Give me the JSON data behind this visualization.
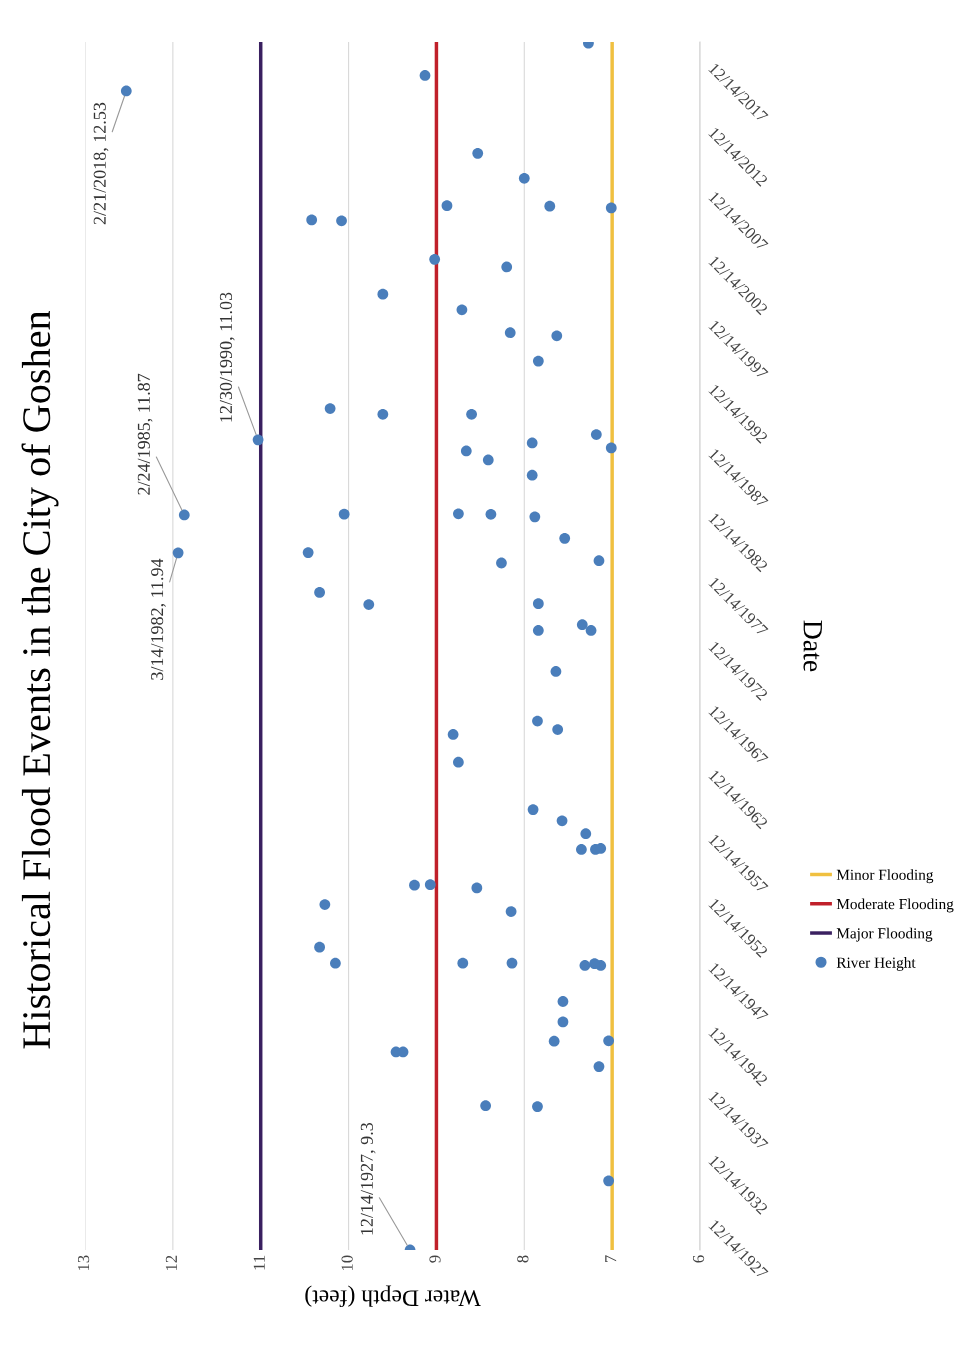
{
  "chart_data": {
    "type": "scatter",
    "orientation": "horizontal",
    "title": "Historical Flood Events in the City of Goshen",
    "xlabel": "Water Depth (feet)",
    "ylabel": "Date",
    "xlim": [
      13,
      6
    ],
    "xticks": [
      13,
      12,
      11,
      10,
      9,
      8,
      7,
      6
    ],
    "ylim": [
      "1927-12-14",
      "2021-12-14"
    ],
    "yticks": [
      {
        "value": "1927-12-14",
        "label": "12/14/1927"
      },
      {
        "value": "1932-12-14",
        "label": "12/14/1932"
      },
      {
        "value": "1937-12-14",
        "label": "12/14/1937"
      },
      {
        "value": "1942-12-14",
        "label": "12/14/1942"
      },
      {
        "value": "1947-12-14",
        "label": "12/14/1947"
      },
      {
        "value": "1952-12-14",
        "label": "12/14/1952"
      },
      {
        "value": "1957-12-14",
        "label": "12/14/1957"
      },
      {
        "value": "1962-12-14",
        "label": "12/14/1962"
      },
      {
        "value": "1967-12-14",
        "label": "12/14/1967"
      },
      {
        "value": "1972-12-14",
        "label": "12/14/1972"
      },
      {
        "value": "1977-12-14",
        "label": "12/14/1977"
      },
      {
        "value": "1982-12-14",
        "label": "12/14/1982"
      },
      {
        "value": "1987-12-14",
        "label": "12/14/1987"
      },
      {
        "value": "1992-12-14",
        "label": "12/14/1992"
      },
      {
        "value": "1997-12-14",
        "label": "12/14/1997"
      },
      {
        "value": "2002-12-14",
        "label": "12/14/2002"
      },
      {
        "value": "2007-12-14",
        "label": "12/14/2007"
      },
      {
        "value": "2012-12-14",
        "label": "12/14/2012"
      },
      {
        "value": "2017-12-14",
        "label": "12/14/2017"
      }
    ],
    "grid": "x",
    "legend": "right",
    "series": [
      {
        "name": "Minor Flooding",
        "type": "line",
        "marker": "none",
        "color": "#f0c040",
        "x": [
          "1927-12-14",
          "2021-11-10"
        ],
        "values": [
          7,
          7
        ]
      },
      {
        "name": "Moderate Flooding",
        "type": "line",
        "marker": "none",
        "color": "#c0202a",
        "x": [
          "1927-12-14",
          "2021-11-10"
        ],
        "values": [
          9,
          9
        ]
      },
      {
        "name": "Major Flooding",
        "type": "line",
        "marker": "none",
        "color": "#3a2060",
        "x": [
          "1927-12-14",
          "2021-11-10"
        ],
        "values": [
          11,
          11
        ]
      },
      {
        "name": "River Height",
        "type": "scatter",
        "marker": "circle",
        "color": "#4a7ebb",
        "x": [
          "1927-12-14",
          "1933-05-01",
          "1939-02-10",
          "1939-03-07",
          "1942-03-22",
          "1943-05-12",
          "1943-05-13",
          "1944-03-14",
          "1944-03-25",
          "1945-09-13",
          "1947-04-16",
          "1950-02-03",
          "1950-02-04",
          "1950-03-26",
          "1950-04-09",
          "1950-04-10",
          "1950-04-11",
          "1951-07-09",
          "1954-04-16",
          "1954-10-31",
          "1956-02-17",
          "1956-05-05",
          "1956-05-19",
          "1959-02-14",
          "1959-02-15",
          "1959-03-14",
          "1960-05-05",
          "1961-05-08",
          "1962-03-22",
          "1965-11-28",
          "1968-01-26",
          "1968-06-13",
          "1969-02-10",
          "1972-12-20",
          "1976-02-28",
          "1976-02-29",
          "1976-08-11",
          "1978-03-07",
          "1978-04-01",
          "1979-02-14",
          "1981-05-30",
          "1981-08-04",
          "1982-03-14",
          "1982-03-22",
          "1983-05-01",
          "1985-01-01",
          "1985-02-24",
          "1985-03-14",
          "1985-03-18",
          "1985-03-29",
          "1988-03-29",
          "1989-06-06",
          "1990-02-17",
          "1990-05-15",
          "1990-10-01",
          "1990-12-30",
          "1991-05-30",
          "1992-12-24",
          "1992-12-25",
          "1993-06-06",
          "1997-02-14",
          "1999-02-03",
          "1999-05-01",
          "2001-02-10",
          "2002-05-01",
          "2004-06-13",
          "2005-01-15",
          "2008-01-15",
          "2008-02-10",
          "2009-01-15",
          "2009-03-07",
          "2009-03-21",
          "2011-05-08",
          "2013-04-16",
          "2018-02-21",
          "2019-05-08",
          "2021-11-10"
        ],
        "values": [
          9.3,
          7.04,
          7.85,
          8.44,
          7.15,
          9.46,
          9.38,
          7.66,
          7.04,
          7.56,
          7.56,
          7.31,
          7.13,
          7.2,
          10.15,
          8.7,
          8.14,
          10.33,
          8.15,
          10.27,
          8.54,
          9.25,
          9.07,
          7.35,
          7.19,
          7.13,
          7.3,
          7.57,
          7.9,
          8.75,
          8.81,
          7.62,
          7.85,
          7.64,
          7.24,
          7.84,
          7.34,
          9.77,
          7.84,
          10.33,
          8.26,
          7.15,
          11.94,
          10.46,
          7.54,
          7.88,
          11.87,
          8.38,
          10.05,
          8.75,
          7.91,
          8.41,
          8.66,
          7.01,
          7.91,
          11.03,
          7.18,
          9.61,
          8.6,
          10.21,
          7.84,
          7.63,
          8.16,
          8.71,
          9.61,
          8.2,
          9.02,
          10.08,
          10.42,
          7.01,
          7.71,
          8.88,
          8.0,
          8.53,
          12.53,
          9.13,
          7.27
        ]
      }
    ],
    "annotations": [
      {
        "text": "12/14/1927, 9.3",
        "x": 9.3,
        "y": "1927-12-14"
      },
      {
        "text": "3/14/1982, 11.94",
        "x": 11.94,
        "y": "1982-03-14"
      },
      {
        "text": "2/24/1985, 11.87",
        "x": 11.87,
        "y": "1985-02-24"
      },
      {
        "text": "12/30/1990, 11.03",
        "x": 11.03,
        "y": "1990-12-30"
      },
      {
        "text": "2/21/2018, 12.53",
        "x": 12.53,
        "y": "2018-02-21"
      }
    ]
  }
}
